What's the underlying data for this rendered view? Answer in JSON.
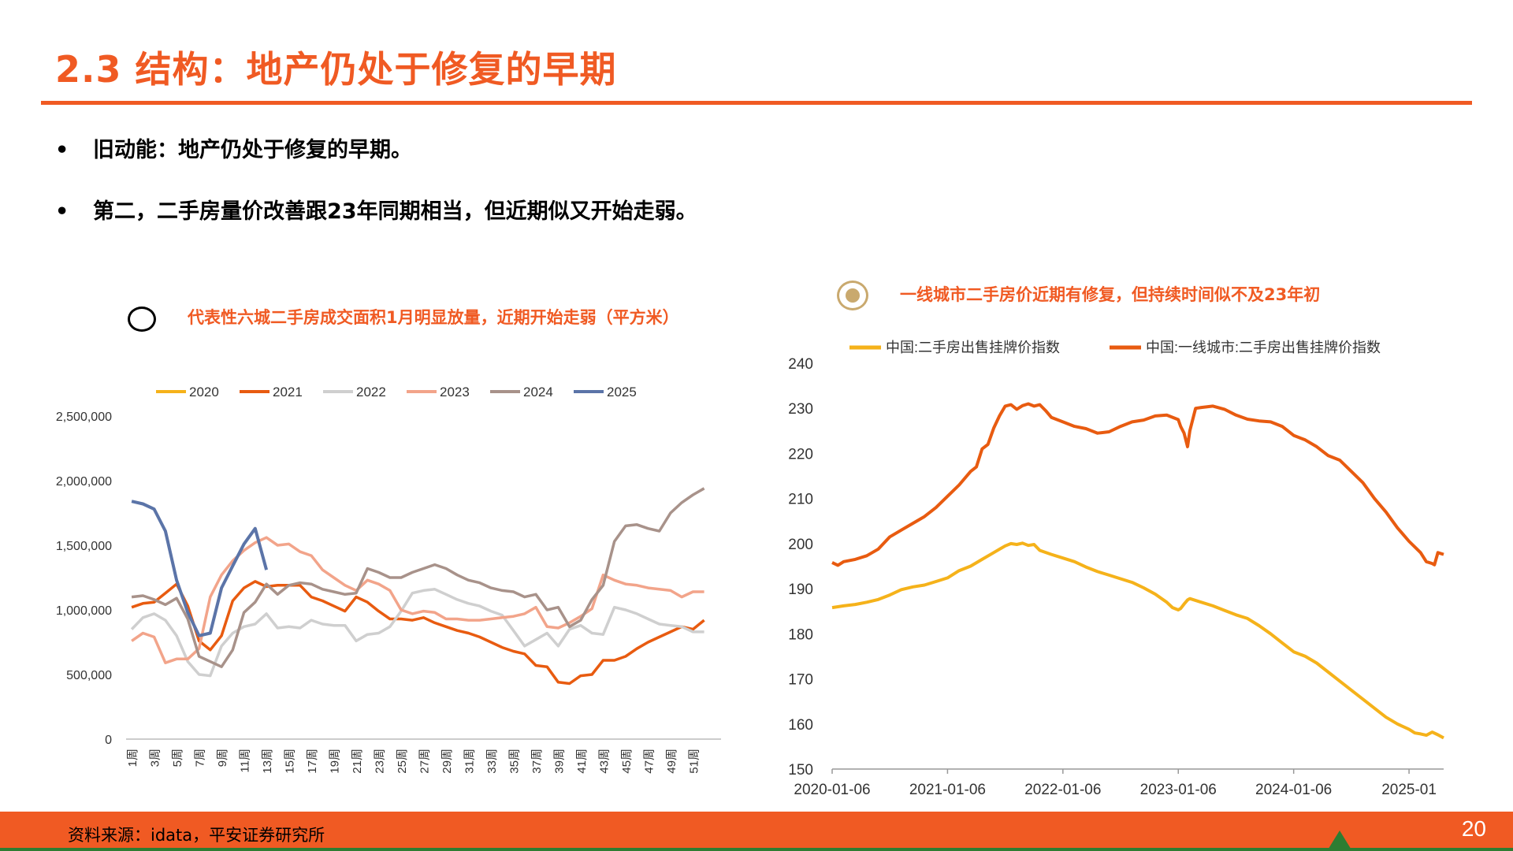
{
  "header": {
    "title": "2.3 结构：地产仍处于修复的早期"
  },
  "bullets": [
    {
      "symbol": "•",
      "text": "旧动能：地产仍处于修复的早期。"
    },
    {
      "symbol": "•",
      "text": "第二，二手房量价改善跟23年同期相当，但近期似又开始走弱。"
    }
  ],
  "footer": {
    "source": "资料来源：idata，平安证券研究所",
    "page": "20"
  },
  "colors": {
    "accent": "#F05A23",
    "green": "#2E7D32"
  },
  "chart_data": [
    {
      "type": "line",
      "title": "代表性六城二手房成交面积1月明显放量，近期开始走弱（平方米）",
      "xlabel": "",
      "ylabel": "",
      "ylim": [
        0,
        2500000
      ],
      "yticks": [
        {
          "value": 0,
          "label": "0"
        },
        {
          "value": 500000,
          "label": "500,000"
        },
        {
          "value": 1000000,
          "label": "1,000,000"
        },
        {
          "value": 1500000,
          "label": "1,500,000"
        },
        {
          "value": 2000000,
          "label": "2,000,000"
        },
        {
          "value": 2500000,
          "label": "2,500,000"
        }
      ],
      "xtick_labels": [
        "1周",
        "3周",
        "5周",
        "7周",
        "9周",
        "11周",
        "13周",
        "15周",
        "17周",
        "19周",
        "21周",
        "23周",
        "25周",
        "27周",
        "29周",
        "31周",
        "33周",
        "35周",
        "37周",
        "39周",
        "41周",
        "43周",
        "45周",
        "47周",
        "49周",
        "51周"
      ],
      "x_count": 53,
      "series": [
        {
          "name": "2020",
          "color": "#F5B21A",
          "values": []
        },
        {
          "name": "2021",
          "color": "#E85B10",
          "values": [
            1020000,
            1050000,
            1060000,
            1130000,
            1200000,
            1030000,
            760000,
            690000,
            800000,
            1070000,
            1170000,
            1220000,
            1180000,
            1190000,
            1190000,
            1190000,
            1100000,
            1070000,
            1030000,
            990000,
            1100000,
            1060000,
            990000,
            930000,
            930000,
            920000,
            940000,
            900000,
            870000,
            840000,
            820000,
            790000,
            750000,
            710000,
            680000,
            660000,
            570000,
            560000,
            440000,
            430000,
            490000,
            500000,
            610000,
            610000,
            640000,
            700000,
            750000,
            790000,
            830000,
            870000,
            850000,
            920000
          ]
        },
        {
          "name": "2022",
          "color": "#CFCFCF",
          "values": [
            850000,
            940000,
            970000,
            920000,
            800000,
            600000,
            500000,
            490000,
            720000,
            820000,
            870000,
            890000,
            970000,
            860000,
            870000,
            860000,
            920000,
            890000,
            880000,
            880000,
            760000,
            810000,
            820000,
            870000,
            990000,
            1130000,
            1150000,
            1160000,
            1120000,
            1080000,
            1050000,
            1030000,
            990000,
            960000,
            840000,
            720000,
            770000,
            820000,
            720000,
            850000,
            880000,
            820000,
            810000,
            1020000,
            1000000,
            970000,
            930000,
            890000,
            880000,
            870000,
            830000,
            830000
          ]
        },
        {
          "name": "2023",
          "color": "#F2A48A",
          "values": [
            760000,
            820000,
            790000,
            590000,
            620000,
            620000,
            700000,
            1100000,
            1270000,
            1380000,
            1460000,
            1520000,
            1560000,
            1500000,
            1510000,
            1450000,
            1420000,
            1310000,
            1250000,
            1190000,
            1150000,
            1230000,
            1200000,
            1150000,
            1000000,
            970000,
            990000,
            980000,
            930000,
            930000,
            920000,
            920000,
            930000,
            940000,
            950000,
            970000,
            1020000,
            870000,
            860000,
            900000,
            950000,
            1010000,
            1270000,
            1230000,
            1200000,
            1190000,
            1170000,
            1160000,
            1150000,
            1100000,
            1140000,
            1140000
          ]
        },
        {
          "name": "2024",
          "color": "#A8928A",
          "values": [
            1100000,
            1110000,
            1080000,
            1040000,
            1090000,
            930000,
            640000,
            600000,
            560000,
            690000,
            980000,
            1060000,
            1200000,
            1120000,
            1190000,
            1210000,
            1200000,
            1160000,
            1140000,
            1120000,
            1130000,
            1320000,
            1290000,
            1250000,
            1250000,
            1290000,
            1320000,
            1350000,
            1320000,
            1270000,
            1230000,
            1210000,
            1170000,
            1150000,
            1140000,
            1100000,
            1120000,
            1000000,
            1020000,
            870000,
            920000,
            1080000,
            1190000,
            1530000,
            1650000,
            1660000,
            1630000,
            1610000,
            1750000,
            1830000,
            1890000,
            1940000
          ]
        },
        {
          "name": "2025",
          "color": "#5B74A8",
          "values": [
            1840000,
            1820000,
            1780000,
            1610000,
            1230000,
            980000,
            800000,
            820000,
            1170000,
            1340000,
            1510000,
            1630000,
            1310000
          ]
        }
      ]
    },
    {
      "type": "line",
      "title": "一线城市二手房价近期有修复，但持续时间似不及23年初",
      "xlabel": "",
      "ylabel": "",
      "ylim": [
        150,
        240
      ],
      "yticks": [
        150,
        160,
        170,
        180,
        190,
        200,
        210,
        220,
        230,
        240
      ],
      "xtick_labels": [
        "2020-01-06",
        "2021-01-06",
        "2022-01-06",
        "2023-01-06",
        "2024-01-06",
        "2025-01"
      ],
      "x_range": [
        2020.0,
        2025.3
      ],
      "x_tick_positions": [
        2020.0,
        2021.0,
        2022.0,
        2023.0,
        2024.0,
        2025.0
      ],
      "series": [
        {
          "name": "中国:二手房出售挂牌价指数",
          "color": "#F5B21A",
          "x": [
            2020.0,
            2020.1,
            2020.2,
            2020.3,
            2020.4,
            2020.5,
            2020.6,
            2020.7,
            2020.8,
            2020.9,
            2021.0,
            2021.1,
            2021.2,
            2021.3,
            2021.4,
            2021.5,
            2021.55,
            2021.6,
            2021.65,
            2021.7,
            2021.75,
            2021.8,
            2021.9,
            2022.0,
            2022.1,
            2022.2,
            2022.3,
            2022.4,
            2022.5,
            2022.6,
            2022.7,
            2022.8,
            2022.9,
            2022.95,
            2023.0,
            2023.02,
            2023.05,
            2023.08,
            2023.1,
            2023.2,
            2023.3,
            2023.4,
            2023.5,
            2023.6,
            2023.7,
            2023.8,
            2023.9,
            2024.0,
            2024.1,
            2024.2,
            2024.3,
            2024.4,
            2024.5,
            2024.6,
            2024.7,
            2024.8,
            2024.9,
            2025.0,
            2025.05,
            2025.1,
            2025.15,
            2025.2,
            2025.25,
            2025.3
          ],
          "y": [
            185.8,
            186.2,
            186.5,
            187,
            187.6,
            188.6,
            189.8,
            190.4,
            190.8,
            191.6,
            192.4,
            194,
            195,
            196.5,
            198,
            199.5,
            200,
            199.8,
            200.1,
            199.6,
            199.8,
            198.5,
            197.6,
            196.8,
            196,
            194.8,
            193.8,
            193,
            192.2,
            191.4,
            190.2,
            188.8,
            187,
            185.8,
            185.3,
            185.6,
            186.6,
            187.5,
            187.8,
            187,
            186.2,
            185.2,
            184.2,
            183.4,
            181.8,
            180,
            178,
            176,
            175,
            173.5,
            171.5,
            169.5,
            167.5,
            165.5,
            163.5,
            161.5,
            160,
            158.8,
            158,
            157.8,
            157.5,
            158.2,
            157.6,
            156.9
          ]
        },
        {
          "name": "中国:一线城市:二手房出售挂牌价指数",
          "color": "#E85B10",
          "x": [
            2020.0,
            2020.05,
            2020.1,
            2020.2,
            2020.3,
            2020.4,
            2020.5,
            2020.6,
            2020.7,
            2020.8,
            2020.9,
            2021.0,
            2021.1,
            2021.2,
            2021.25,
            2021.3,
            2021.35,
            2021.4,
            2021.45,
            2021.5,
            2021.55,
            2021.6,
            2021.65,
            2021.7,
            2021.75,
            2021.8,
            2021.85,
            2021.9,
            2022.0,
            2022.1,
            2022.2,
            2022.3,
            2022.4,
            2022.5,
            2022.6,
            2022.7,
            2022.8,
            2022.9,
            2023.0,
            2023.02,
            2023.05,
            2023.08,
            2023.1,
            2023.15,
            2023.2,
            2023.3,
            2023.4,
            2023.5,
            2023.6,
            2023.7,
            2023.8,
            2023.9,
            2024.0,
            2024.1,
            2024.2,
            2024.3,
            2024.4,
            2024.5,
            2024.6,
            2024.7,
            2024.8,
            2024.9,
            2025.0,
            2025.1,
            2025.15,
            2025.2,
            2025.22,
            2025.25,
            2025.3
          ],
          "y": [
            195.8,
            195.2,
            196,
            196.5,
            197.3,
            198.8,
            201.5,
            203,
            204.5,
            206,
            208,
            210.5,
            213,
            216,
            217,
            221,
            222,
            225.6,
            228.3,
            230.5,
            230.8,
            229.8,
            230.6,
            231,
            230.5,
            230.8,
            229.5,
            228,
            227,
            226,
            225.5,
            224.5,
            224.8,
            226,
            227,
            227.4,
            228.3,
            228.5,
            227.5,
            226,
            224.5,
            221.5,
            225,
            230,
            230.2,
            230.5,
            229.8,
            228.5,
            227.6,
            227.2,
            227,
            226,
            224,
            223,
            221.5,
            219.5,
            218.5,
            216,
            213.5,
            210,
            207,
            203.5,
            200.5,
            198,
            196,
            195.6,
            195.3,
            198,
            197.6
          ]
        }
      ]
    }
  ]
}
